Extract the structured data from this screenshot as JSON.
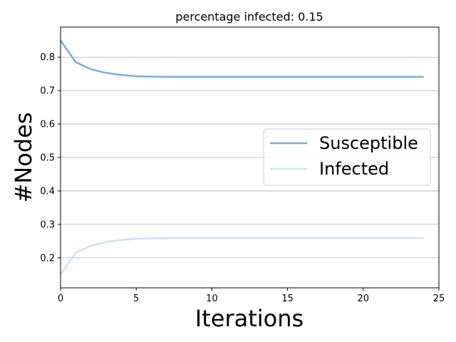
{
  "chart_data": {
    "type": "line",
    "title": "percentage infected: 0.15",
    "xlabel": "Iterations",
    "ylabel": "#Nodes",
    "xlim": [
      0,
      25
    ],
    "ylim": [
      0.11,
      0.89
    ],
    "xticks": [
      0,
      5,
      10,
      15,
      20,
      25
    ],
    "yticks": [
      0.2,
      0.3,
      0.4,
      0.5,
      0.6,
      0.7,
      0.8
    ],
    "y_grid": true,
    "legend_position": "center-right",
    "x": [
      0,
      1,
      2,
      3,
      4,
      5,
      6,
      7,
      8,
      9,
      10,
      11,
      12,
      13,
      14,
      15,
      16,
      17,
      18,
      19,
      20,
      21,
      22,
      23,
      24
    ],
    "series": [
      {
        "name": "Susceptible",
        "color": "#7bafd4",
        "values": [
          0.85,
          0.785,
          0.764,
          0.753,
          0.747,
          0.743,
          0.742,
          0.741,
          0.741,
          0.741,
          0.741,
          0.741,
          0.741,
          0.741,
          0.741,
          0.741,
          0.741,
          0.741,
          0.741,
          0.741,
          0.741,
          0.741,
          0.741,
          0.741,
          0.741
        ]
      },
      {
        "name": "Infected",
        "color": "#d1dff2",
        "values": [
          0.15,
          0.215,
          0.236,
          0.247,
          0.253,
          0.257,
          0.258,
          0.259,
          0.259,
          0.259,
          0.259,
          0.259,
          0.259,
          0.259,
          0.259,
          0.259,
          0.259,
          0.259,
          0.259,
          0.259,
          0.259,
          0.259,
          0.259,
          0.259,
          0.259
        ]
      }
    ]
  }
}
